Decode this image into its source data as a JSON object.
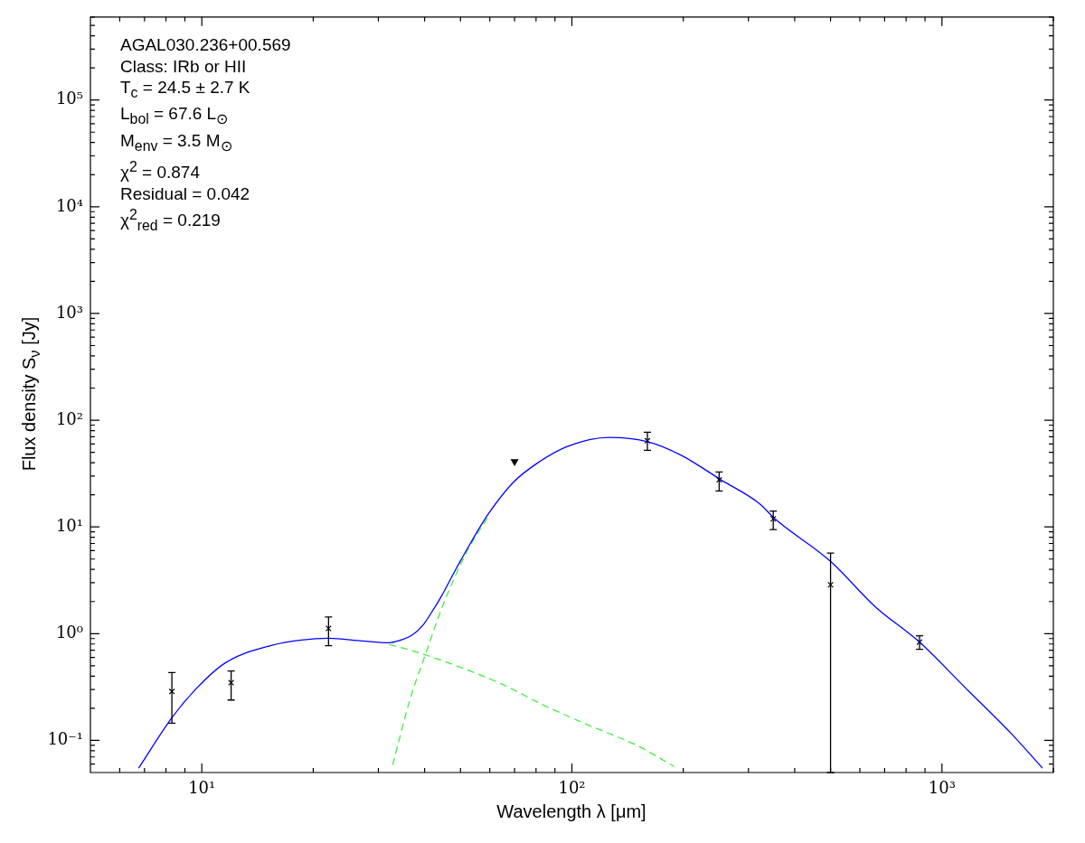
{
  "chart_data": {
    "type": "scatter",
    "xlabel": "Wavelength λ [μm]",
    "ylabel": "Flux density S$_{ν}$ [Jy]",
    "annotations": [
      "AGAL030.236+00.569",
      "Class: IRb or HII",
      "T$_{c}$ = 24.5 ± 2.7 K",
      "L$_{bol}$ = 67.6 L$_{⊙}$",
      "M$_{env}$ = 3.5 M$_{⊙}$",
      "χ$^{2}$ = 0.874",
      "Residual = 0.042",
      "χ$^{2}$$_{red}$ = 0.219"
    ],
    "log": "xy",
    "grid": false,
    "legend": false,
    "xlim": [
      5,
      2000
    ],
    "ylim": [
      0.05,
      600000
    ],
    "xticks": [
      {
        "value": 6,
        "label": null
      },
      {
        "value": 7,
        "label": null
      },
      {
        "value": 8,
        "label": null
      },
      {
        "value": 9,
        "label": null
      },
      {
        "value": 10,
        "label": "10¹"
      },
      {
        "value": 20,
        "label": null
      },
      {
        "value": 30,
        "label": null
      },
      {
        "value": 40,
        "label": null
      },
      {
        "value": 50,
        "label": null
      },
      {
        "value": 60,
        "label": null
      },
      {
        "value": 70,
        "label": null
      },
      {
        "value": 80,
        "label": null
      },
      {
        "value": 90,
        "label": null
      },
      {
        "value": 100,
        "label": "10²"
      },
      {
        "value": 200,
        "label": null
      },
      {
        "value": 300,
        "label": null
      },
      {
        "value": 400,
        "label": null
      },
      {
        "value": 500,
        "label": null
      },
      {
        "value": 600,
        "label": null
      },
      {
        "value": 700,
        "label": null
      },
      {
        "value": 800,
        "label": null
      },
      {
        "value": 900,
        "label": null
      },
      {
        "value": 1000,
        "label": "10³"
      },
      {
        "value": 2000,
        "label": null
      }
    ],
    "yticks": [
      {
        "value": 0.06,
        "label": null
      },
      {
        "value": 0.07,
        "label": null
      },
      {
        "value": 0.08,
        "label": null
      },
      {
        "value": 0.09,
        "label": null
      },
      {
        "value": 0.1,
        "label": "10⁻¹"
      },
      {
        "value": 0.2,
        "label": null
      },
      {
        "value": 0.3,
        "label": null
      },
      {
        "value": 0.4,
        "label": null
      },
      {
        "value": 0.5,
        "label": null
      },
      {
        "value": 0.6,
        "label": null
      },
      {
        "value": 0.7,
        "label": null
      },
      {
        "value": 0.8,
        "label": null
      },
      {
        "value": 0.9,
        "label": null
      },
      {
        "value": 1,
        "label": "10⁰"
      },
      {
        "value": 2,
        "label": null
      },
      {
        "value": 3,
        "label": null
      },
      {
        "value": 4,
        "label": null
      },
      {
        "value": 5,
        "label": null
      },
      {
        "value": 6,
        "label": null
      },
      {
        "value": 7,
        "label": null
      },
      {
        "value": 8,
        "label": null
      },
      {
        "value": 9,
        "label": null
      },
      {
        "value": 10,
        "label": "10¹"
      },
      {
        "value": 20,
        "label": null
      },
      {
        "value": 30,
        "label": null
      },
      {
        "value": 40,
        "label": null
      },
      {
        "value": 50,
        "label": null
      },
      {
        "value": 60,
        "label": null
      },
      {
        "value": 70,
        "label": null
      },
      {
        "value": 80,
        "label": null
      },
      {
        "value": 90,
        "label": null
      },
      {
        "value": 100,
        "label": "10²"
      },
      {
        "value": 200,
        "label": null
      },
      {
        "value": 300,
        "label": null
      },
      {
        "value": 400,
        "label": null
      },
      {
        "value": 500,
        "label": null
      },
      {
        "value": 600,
        "label": null
      },
      {
        "value": 700,
        "label": null
      },
      {
        "value": 800,
        "label": null
      },
      {
        "value": 900,
        "label": null
      },
      {
        "value": 1000,
        "label": "10³"
      },
      {
        "value": 2000,
        "label": null
      },
      {
        "value": 3000,
        "label": null
      },
      {
        "value": 4000,
        "label": null
      },
      {
        "value": 5000,
        "label": null
      },
      {
        "value": 6000,
        "label": null
      },
      {
        "value": 7000,
        "label": null
      },
      {
        "value": 8000,
        "label": null
      },
      {
        "value": 9000,
        "label": null
      },
      {
        "value": 10000,
        "label": "10⁴"
      },
      {
        "value": 20000,
        "label": null
      },
      {
        "value": 30000,
        "label": null
      },
      {
        "value": 40000,
        "label": null
      },
      {
        "value": 50000,
        "label": null
      },
      {
        "value": 60000,
        "label": null
      },
      {
        "value": 70000,
        "label": null
      },
      {
        "value": 80000,
        "label": null
      },
      {
        "value": 90000,
        "label": null
      },
      {
        "value": 100000,
        "label": "10⁵"
      },
      {
        "value": 200000,
        "label": null
      },
      {
        "value": 300000,
        "label": null
      },
      {
        "value": 400000,
        "label": null
      },
      {
        "value": 500000,
        "label": null
      },
      {
        "value": 600000,
        "label": null
      }
    ],
    "series": [
      {
        "type": "line",
        "color": "#0000ff",
        "line_style": "solid",
        "marker": "none",
        "x": [
          6.75,
          8.3,
          9.7,
          11.6,
          15.4,
          18.6,
          22,
          27.1,
          32.1,
          34.5,
          36.9,
          39.5,
          42,
          44.2,
          48.4,
          53.2,
          59.6,
          69.3,
          80.3,
          97.2,
          126,
          161,
          198,
          253,
          323,
          351,
          500,
          659,
          873,
          1158,
          1535,
          1870
        ],
        "values": [
          0.055,
          0.163,
          0.31,
          0.535,
          0.776,
          0.873,
          0.907,
          0.855,
          0.823,
          0.873,
          0.962,
          1.19,
          1.63,
          2.18,
          3.92,
          7.04,
          13.4,
          26,
          39.2,
          56.8,
          69,
          62.6,
          46.7,
          27.6,
          16.3,
          12.2,
          4.76,
          1.8,
          0.823,
          0.31,
          0.117,
          0.055
        ]
      },
      {
        "type": "line",
        "color": "#44ee44",
        "line_style": "dashed",
        "marker": "none",
        "x": [
          32.8,
          36.5,
          40.2,
          45,
          52.4,
          59.6
        ],
        "values": [
          0.059,
          0.24,
          0.638,
          1.91,
          6.14,
          12.6
        ]
      },
      {
        "type": "line",
        "color": "#44ee44",
        "line_style": "dashed",
        "marker": "none",
        "x": [
          32.1,
          36.5,
          48.4,
          64.1,
          84.9,
          112,
          149,
          189
        ],
        "values": [
          0.791,
          0.703,
          0.505,
          0.342,
          0.21,
          0.137,
          0.0907,
          0.057
        ]
      },
      {
        "type": "scatter",
        "color": "#000000",
        "marker": "cross",
        "x": [
          8.3,
          12,
          22,
          160,
          250,
          350,
          500,
          870
        ],
        "values": [
          0.287,
          0.347,
          1.12,
          64.2,
          27.6,
          11.9,
          2.87,
          0.834
        ],
        "errors": [
          [
            0.145,
            0.432
          ],
          [
            0.239,
            0.447
          ],
          [
            0.771,
            1.43
          ],
          [
            52.2,
            77.1
          ],
          [
            21.7,
            32.7
          ],
          [
            9.43,
            14.1
          ],
          [
            0.05,
            5.68
          ],
          [
            0.714,
            0.956
          ]
        ]
      },
      {
        "type": "scatter",
        "color": "#000000",
        "marker": "triangle",
        "x": [
          70
        ],
        "values": [
          41
        ]
      }
    ]
  }
}
